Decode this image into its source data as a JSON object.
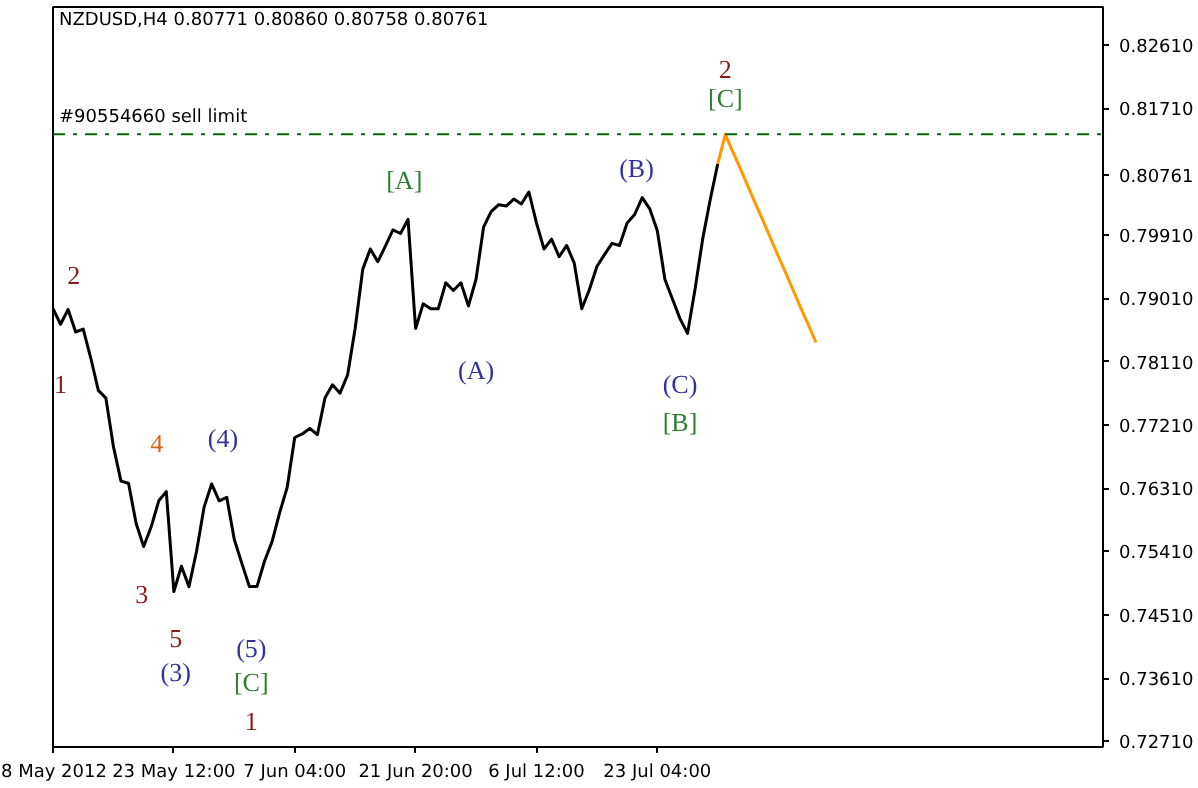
{
  "chart_data": {
    "type": "line",
    "title": "NZDUSD,H4  0.80771 0.80860 0.80758 0.80761",
    "categories": [
      "8 May 2012",
      null,
      null,
      null,
      null,
      null,
      null,
      null,
      null,
      null,
      null,
      null,
      null,
      null,
      null,
      null,
      "23 May 12:00",
      null,
      null,
      null,
      null,
      null,
      null,
      null,
      null,
      null,
      null,
      null,
      null,
      null,
      null,
      null,
      "7 Jun 04:00",
      null,
      null,
      null,
      null,
      null,
      null,
      null,
      null,
      null,
      null,
      null,
      null,
      null,
      null,
      null,
      "21 Jun 20:00",
      null,
      null,
      null,
      null,
      null,
      null,
      null,
      null,
      null,
      null,
      null,
      null,
      null,
      null,
      null,
      "6 Jul 12:00",
      null,
      null,
      null,
      null,
      null,
      null,
      null,
      null,
      null,
      null,
      null,
      null,
      null,
      null,
      null,
      "23 Jul 04:00",
      null,
      null,
      null,
      null,
      null,
      null,
      null,
      null,
      null,
      null,
      null,
      null,
      null,
      null,
      null,
      null,
      null,
      null,
      null,
      null,
      null,
      null,
      null,
      null,
      null,
      null,
      null,
      null,
      null,
      null,
      null,
      null,
      null,
      null,
      null,
      null,
      null,
      null,
      null,
      null,
      null,
      null,
      null,
      null,
      null,
      null,
      null,
      null,
      null,
      null,
      null,
      null,
      null,
      null,
      null,
      null,
      null,
      null,
      null
    ],
    "ylim": [
      0.7263,
      0.8315
    ],
    "yticks": [
      {
        "value": 0.8261,
        "label": "0.82610"
      },
      {
        "value": 0.8171,
        "label": "0.81710"
      },
      {
        "value": 0.80761,
        "label": "0.80761"
      },
      {
        "value": 0.7991,
        "label": "0.79910"
      },
      {
        "value": 0.7901,
        "label": "0.79010"
      },
      {
        "value": 0.7811,
        "label": "0.78110"
      },
      {
        "value": 0.7721,
        "label": "0.77210"
      },
      {
        "value": 0.7631,
        "label": "0.76310"
      },
      {
        "value": 0.7541,
        "label": "0.75410"
      },
      {
        "value": 0.7451,
        "label": "0.74510"
      },
      {
        "value": 0.7361,
        "label": "0.73610"
      },
      {
        "value": 0.7271,
        "label": "0.72710"
      }
    ],
    "grid": false,
    "marker": "none",
    "line_style": "solid",
    "series": [
      {
        "color": "#000000",
        "values": [
          0.7886,
          0.7864,
          0.7885,
          0.7853,
          0.7857,
          0.7816,
          0.777,
          0.7759,
          0.769,
          0.7641,
          0.7638,
          0.7581,
          0.7548,
          0.7576,
          0.7613,
          0.7626,
          0.7484,
          0.752,
          0.7491,
          0.7541,
          0.7604,
          0.7637,
          0.7613,
          0.7618,
          0.7558,
          0.7524,
          0.7491,
          0.7491,
          0.7527,
          0.7555,
          0.7596,
          0.7632,
          0.7703,
          0.7708,
          0.7716,
          0.7707,
          0.7759,
          0.7778,
          0.7766,
          0.7792,
          0.7858,
          0.7942,
          0.7971,
          0.7953,
          0.7975,
          0.7998,
          0.7993,
          0.8013,
          0.7858,
          0.7893,
          0.7886,
          0.7886,
          0.7923,
          0.7912,
          0.7923,
          0.789,
          0.7928,
          0.8002,
          0.8024,
          0.8034,
          0.8032,
          0.8042,
          0.8035,
          0.8052,
          0.8008,
          0.7971,
          0.7985,
          0.796,
          0.7976,
          0.7951,
          0.7886,
          0.7913,
          0.7946,
          0.7963,
          0.7979,
          0.7976,
          0.8008,
          0.802,
          0.8044,
          0.8028,
          0.7997,
          0.7928,
          0.79,
          0.7872,
          0.7851,
          0.7914,
          0.7985,
          0.8041,
          0.8092,
          null,
          null,
          null,
          null,
          null,
          null,
          null,
          null,
          null,
          null,
          null,
          null,
          null,
          null,
          null,
          null,
          null,
          null,
          null,
          null,
          null,
          null,
          null,
          null,
          null,
          null,
          null,
          null,
          null,
          null,
          null,
          null,
          null,
          null,
          null,
          null,
          null,
          null,
          null,
          null,
          null,
          null,
          null,
          null,
          null,
          null,
          null,
          null,
          null,
          null,
          null
        ]
      },
      {
        "color": "#ff9900",
        "values": [
          null,
          null,
          null,
          null,
          null,
          null,
          null,
          null,
          null,
          null,
          null,
          null,
          null,
          null,
          null,
          null,
          null,
          null,
          null,
          null,
          null,
          null,
          null,
          null,
          null,
          null,
          null,
          null,
          null,
          null,
          null,
          null,
          null,
          null,
          null,
          null,
          null,
          null,
          null,
          null,
          null,
          null,
          null,
          null,
          null,
          null,
          null,
          null,
          null,
          null,
          null,
          null,
          null,
          null,
          null,
          null,
          null,
          null,
          null,
          null,
          null,
          null,
          null,
          null,
          null,
          null,
          null,
          null,
          null,
          null,
          null,
          null,
          null,
          null,
          null,
          null,
          null,
          null,
          null,
          null,
          null,
          null,
          null,
          null,
          null,
          null,
          null,
          null,
          0.8092,
          0.8134,
          0.8109,
          0.8085,
          0.806,
          0.8035,
          0.8011,
          0.7986,
          0.7961,
          0.7937,
          0.7912,
          0.7887,
          0.7863,
          0.7838,
          null,
          null,
          null,
          null,
          null,
          null,
          null,
          null,
          null,
          null,
          null,
          null,
          null,
          null,
          null,
          null,
          null,
          null,
          null,
          null,
          null,
          null,
          null,
          null,
          null,
          null,
          null,
          null,
          null,
          null,
          null,
          null,
          null,
          null,
          null,
          null,
          null,
          null
        ]
      }
    ],
    "ref_lines": [
      {
        "axis": "y",
        "value": 0.8134,
        "label": "#90554660 sell limit",
        "color": "#006400",
        "line_style": "dashdot"
      }
    ],
    "annotations": [
      "2",
      "1",
      "4",
      "3",
      "5",
      "(3)",
      "(4)",
      "(5)",
      "[C]",
      "1",
      "[A]",
      "(A)",
      "(B)",
      "(C)",
      "[B]",
      "2",
      "[C]"
    ]
  }
}
